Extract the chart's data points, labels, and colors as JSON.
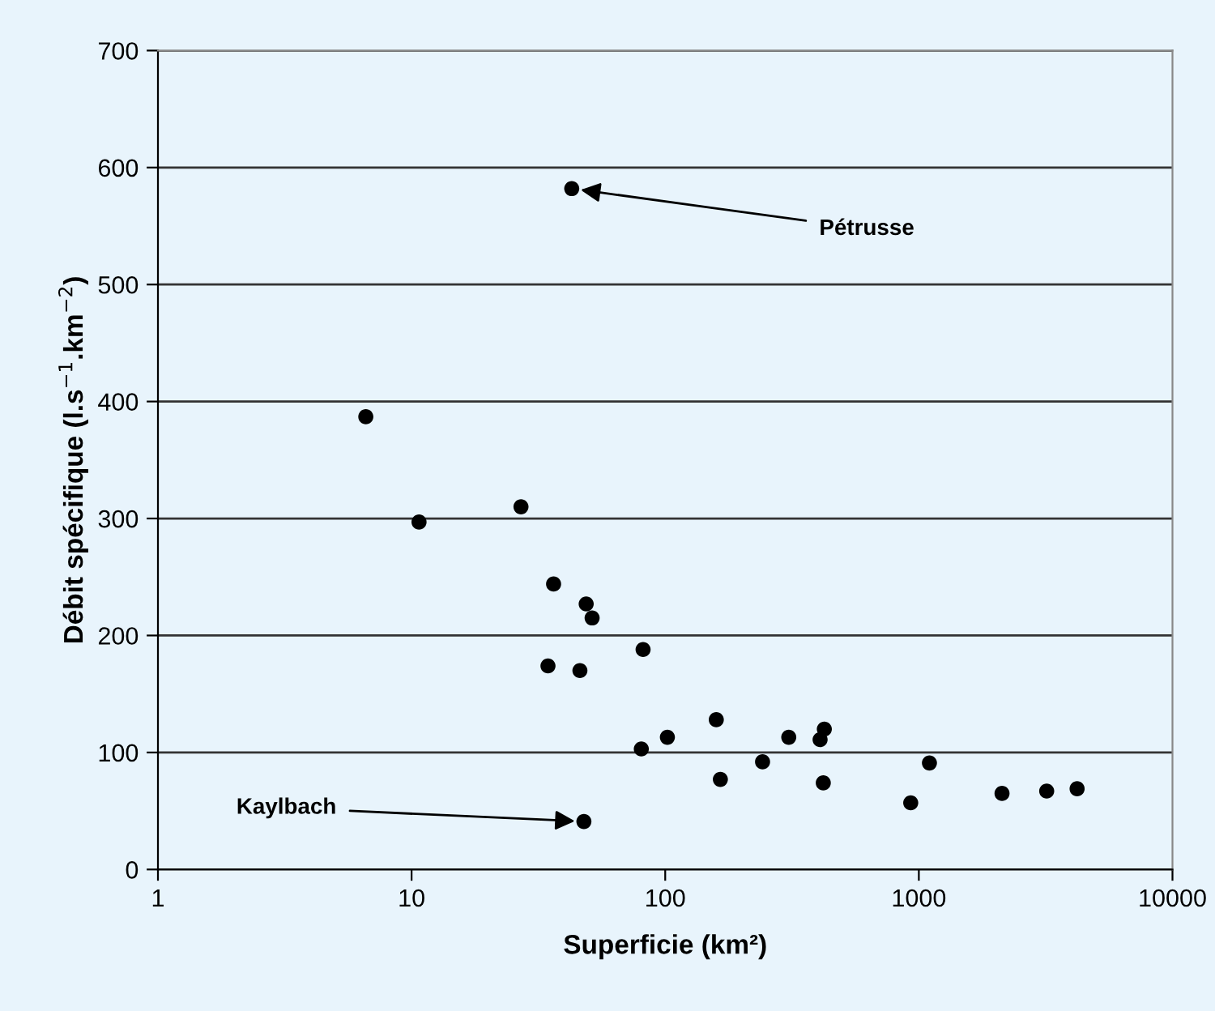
{
  "chart_data": {
    "type": "scatter",
    "xlabel": "Superficie (km²)",
    "ylabel": "Débit spécifique (l.s$^{−1}$.km$^{−2}$)",
    "x": [
      6.6,
      10.7,
      27,
      34.5,
      36.3,
      42.8,
      46.1,
      47.8,
      48.8,
      51.5,
      80.5,
      81.8,
      102,
      159,
      165,
      242,
      307,
      408,
      420,
      424,
      929,
      1101,
      2128,
      3192,
      4207
    ],
    "values": [
      387,
      297,
      310,
      174,
      244,
      582,
      170,
      41,
      227,
      215,
      103,
      188,
      113,
      128,
      77,
      92,
      113,
      111,
      74,
      120,
      57,
      91,
      65,
      67,
      69
    ],
    "color": "#000000",
    "marker": "circle",
    "log": "x",
    "xlim": [
      1,
      10000
    ],
    "xticks": [
      1,
      10,
      100,
      1000,
      10000
    ],
    "ylim": [
      0,
      700
    ],
    "yticks": [
      0,
      100,
      200,
      300,
      400,
      500,
      600,
      700
    ],
    "grid": "y",
    "annotations": [
      {
        "text": "Pétrusse",
        "x": 42.8,
        "y": 582
      },
      {
        "text": "Kaylbach",
        "x": 47.8,
        "y": 41
      }
    ]
  }
}
